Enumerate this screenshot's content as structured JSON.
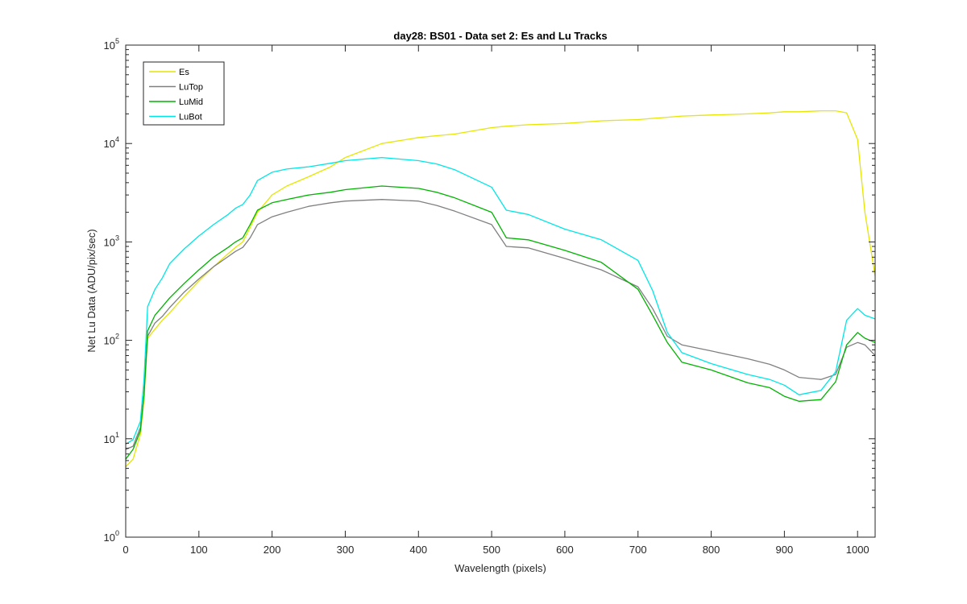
{
  "chart_data": {
    "type": "line",
    "title": "day28: BS01 - Data set 2: Es and Lu Tracks",
    "xlabel": "Wavelength (pixels)",
    "ylabel": "Net Lu Data (ADU/pix/sec)",
    "xlim": [
      0,
      1024
    ],
    "ylim": [
      1,
      100000
    ],
    "yscale": "log",
    "grid": false,
    "legend_position": "top-left",
    "x_ticks": [
      "0",
      "100",
      "200",
      "300",
      "400",
      "500",
      "600",
      "700",
      "800",
      "900",
      "1000"
    ],
    "y_ticks": [
      {
        "base": "10",
        "exp": "0"
      },
      {
        "base": "10",
        "exp": "1"
      },
      {
        "base": "10",
        "exp": "2"
      },
      {
        "base": "10",
        "exp": "3"
      },
      {
        "base": "10",
        "exp": "4"
      },
      {
        "base": "10",
        "exp": "5"
      }
    ],
    "x": [
      0,
      10,
      20,
      25,
      30,
      40,
      50,
      60,
      80,
      100,
      120,
      140,
      150,
      160,
      170,
      180,
      200,
      220,
      250,
      280,
      300,
      350,
      400,
      425,
      450,
      500,
      520,
      550,
      600,
      650,
      700,
      720,
      740,
      760,
      800,
      850,
      880,
      900,
      920,
      950,
      970,
      985,
      1000,
      1010,
      1024
    ],
    "series": [
      {
        "name": "Es",
        "color": "#e6e600",
        "values": [
          5.2,
          6.2,
          11,
          25,
          105,
          130,
          160,
          190,
          280,
          400,
          560,
          760,
          880,
          1000,
          1400,
          2000,
          3000,
          3700,
          4600,
          5800,
          7200,
          10000,
          11500,
          12000,
          12500,
          14500,
          15000,
          15500,
          16000,
          17000,
          17500,
          18000,
          18500,
          19000,
          19500,
          20000,
          20500,
          21000,
          21000,
          21500,
          21500,
          20500,
          11000,
          2000,
          450
        ]
      },
      {
        "name": "LuTop",
        "color": "#808080",
        "values": [
          7.8,
          8.4,
          13,
          28,
          110,
          150,
          175,
          215,
          310,
          420,
          560,
          710,
          800,
          880,
          1100,
          1500,
          1800,
          2000,
          2300,
          2500,
          2600,
          2700,
          2600,
          2350,
          2050,
          1500,
          900,
          870,
          680,
          520,
          350,
          210,
          110,
          90,
          78,
          65,
          57,
          50,
          42,
          40,
          45,
          85,
          95,
          90,
          70
        ]
      },
      {
        "name": "LuMid",
        "color": "#00b300",
        "values": [
          6.2,
          7.8,
          12,
          28,
          125,
          180,
          220,
          270,
          380,
          520,
          700,
          880,
          1000,
          1100,
          1500,
          2100,
          2500,
          2700,
          3000,
          3200,
          3400,
          3700,
          3500,
          3200,
          2800,
          2000,
          1100,
          1050,
          820,
          620,
          330,
          180,
          95,
          60,
          50,
          37,
          33,
          27,
          24,
          25,
          38,
          90,
          120,
          105,
          95
        ]
      },
      {
        "name": "LuBot",
        "color": "#00e6e6",
        "values": [
          8.8,
          9.8,
          15,
          40,
          220,
          330,
          430,
          600,
          850,
          1150,
          1500,
          1900,
          2200,
          2400,
          3000,
          4200,
          5100,
          5500,
          5800,
          6300,
          6700,
          7200,
          6700,
          6200,
          5400,
          3600,
          2100,
          1900,
          1350,
          1050,
          650,
          320,
          120,
          75,
          58,
          45,
          40,
          35,
          28,
          31,
          48,
          160,
          210,
          180,
          165
        ]
      }
    ]
  }
}
